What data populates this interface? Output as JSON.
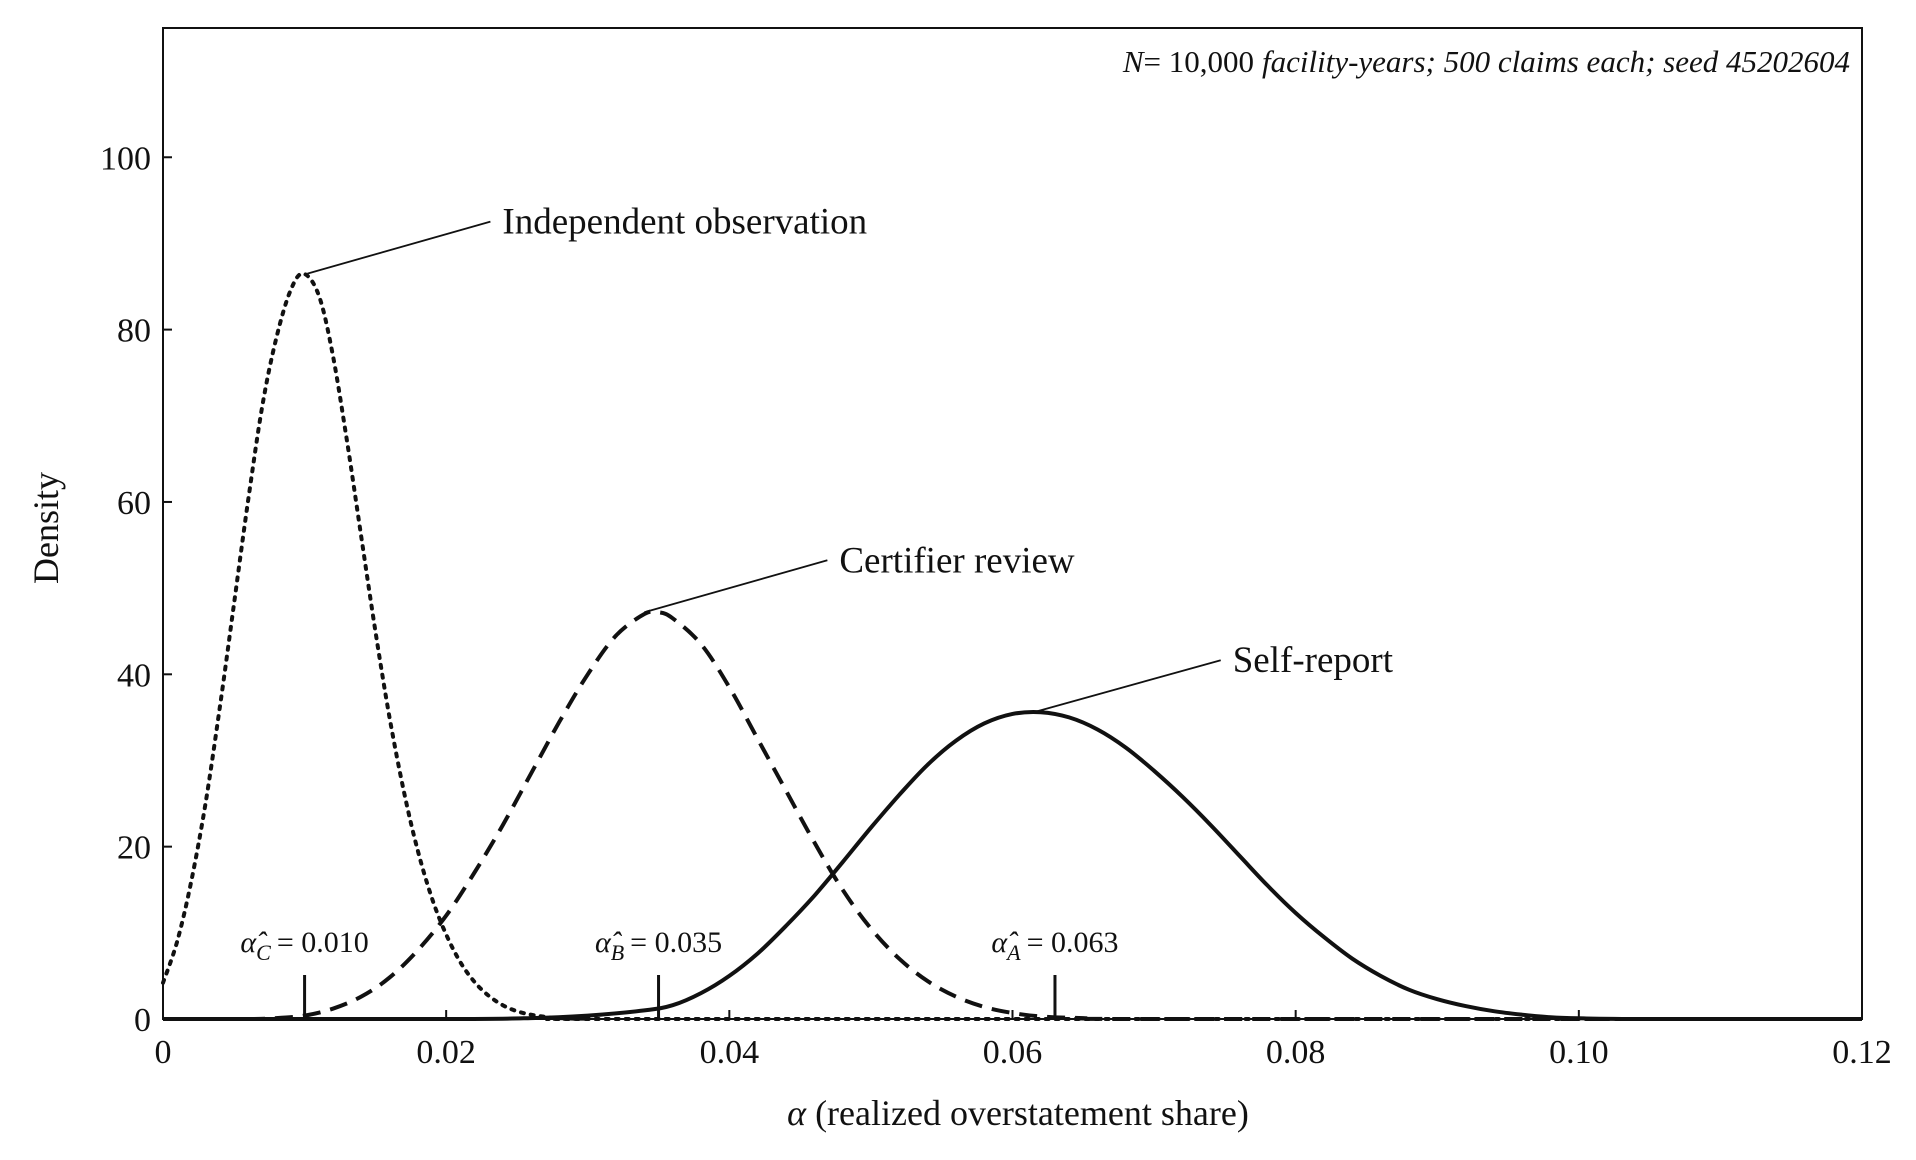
{
  "chart_data": {
    "type": "line",
    "title": "",
    "xlabel": "α (realized overstatement share)",
    "ylabel": "Density",
    "xlim": [
      0,
      0.12
    ],
    "ylim": [
      0,
      115
    ],
    "grid": false,
    "legend": "none",
    "x_ticks": [
      {
        "value": 0,
        "label": "0"
      },
      {
        "value": 0.02,
        "label": "0.02"
      },
      {
        "value": 0.04,
        "label": "0.04"
      },
      {
        "value": 0.06,
        "label": "0.06"
      },
      {
        "value": 0.08,
        "label": "0.08"
      },
      {
        "value": 0.1,
        "label": "0.10"
      },
      {
        "value": 0.12,
        "label": "0.12"
      }
    ],
    "y_ticks": [
      {
        "value": 0,
        "label": "0"
      },
      {
        "value": 20,
        "label": "20"
      },
      {
        "value": 40,
        "label": "40"
      },
      {
        "value": 60,
        "label": "60"
      },
      {
        "value": 80,
        "label": "80"
      },
      {
        "value": 100,
        "label": "100"
      }
    ],
    "note": {
      "n_label": "N",
      "n_value": "= 10,000",
      "rest": "facility-years; 500 claims each; seed 45202604"
    },
    "series": [
      {
        "name": "Independent observation",
        "style": "dotted",
        "color": "#111111",
        "points": [
          [
            0,
            4.2
          ],
          [
            0.001,
            9
          ],
          [
            0.002,
            16
          ],
          [
            0.003,
            25
          ],
          [
            0.004,
            36
          ],
          [
            0.005,
            48
          ],
          [
            0.006,
            60
          ],
          [
            0.007,
            71
          ],
          [
            0.008,
            79
          ],
          [
            0.009,
            84.5
          ],
          [
            0.0099,
            86.5
          ],
          [
            0.011,
            84
          ],
          [
            0.012,
            77
          ],
          [
            0.013,
            67
          ],
          [
            0.014,
            56
          ],
          [
            0.015,
            45
          ],
          [
            0.016,
            35
          ],
          [
            0.017,
            26.5
          ],
          [
            0.018,
            19.5
          ],
          [
            0.019,
            14
          ],
          [
            0.02,
            9.8
          ],
          [
            0.021,
            6.6
          ],
          [
            0.022,
            4.3
          ],
          [
            0.023,
            2.7
          ],
          [
            0.024,
            1.6
          ],
          [
            0.025,
            0.9
          ],
          [
            0.026,
            0.5
          ],
          [
            0.027,
            0.25
          ],
          [
            0.028,
            0.1
          ],
          [
            0.03,
            0.03
          ],
          [
            0.035,
            0
          ],
          [
            0.12,
            0
          ]
        ]
      },
      {
        "name": "Certifier review",
        "style": "dashed",
        "color": "#111111",
        "points": [
          [
            0,
            0
          ],
          [
            0.006,
            0
          ],
          [
            0.008,
            0.1
          ],
          [
            0.01,
            0.4
          ],
          [
            0.012,
            1.2
          ],
          [
            0.014,
            2.6
          ],
          [
            0.016,
            4.8
          ],
          [
            0.018,
            8
          ],
          [
            0.02,
            12
          ],
          [
            0.022,
            17
          ],
          [
            0.024,
            22.5
          ],
          [
            0.026,
            28.5
          ],
          [
            0.028,
            34.5
          ],
          [
            0.03,
            40
          ],
          [
            0.032,
            44.5
          ],
          [
            0.034,
            47
          ],
          [
            0.035,
            47.2
          ],
          [
            0.036,
            46.5
          ],
          [
            0.038,
            43.5
          ],
          [
            0.04,
            38.5
          ],
          [
            0.042,
            32.5
          ],
          [
            0.044,
            26.5
          ],
          [
            0.046,
            20.5
          ],
          [
            0.048,
            15
          ],
          [
            0.05,
            10.5
          ],
          [
            0.052,
            7
          ],
          [
            0.054,
            4.4
          ],
          [
            0.056,
            2.6
          ],
          [
            0.058,
            1.4
          ],
          [
            0.06,
            0.7
          ],
          [
            0.062,
            0.3
          ],
          [
            0.065,
            0.1
          ],
          [
            0.07,
            0
          ],
          [
            0.12,
            0
          ]
        ]
      },
      {
        "name": "Self-report",
        "style": "solid",
        "color": "#111111",
        "points": [
          [
            0,
            0
          ],
          [
            0.02,
            0
          ],
          [
            0.026,
            0.1
          ],
          [
            0.03,
            0.4
          ],
          [
            0.034,
            1
          ],
          [
            0.036,
            1.6
          ],
          [
            0.038,
            3
          ],
          [
            0.04,
            5
          ],
          [
            0.042,
            7.6
          ],
          [
            0.044,
            10.8
          ],
          [
            0.046,
            14.3
          ],
          [
            0.048,
            18.2
          ],
          [
            0.05,
            22.2
          ],
          [
            0.052,
            26
          ],
          [
            0.054,
            29.5
          ],
          [
            0.056,
            32.3
          ],
          [
            0.058,
            34.3
          ],
          [
            0.06,
            35.4
          ],
          [
            0.062,
            35.6
          ],
          [
            0.064,
            35
          ],
          [
            0.066,
            33.6
          ],
          [
            0.068,
            31.5
          ],
          [
            0.07,
            28.8
          ],
          [
            0.072,
            25.8
          ],
          [
            0.074,
            22.5
          ],
          [
            0.076,
            19
          ],
          [
            0.078,
            15.5
          ],
          [
            0.08,
            12.3
          ],
          [
            0.082,
            9.5
          ],
          [
            0.084,
            7
          ],
          [
            0.086,
            5
          ],
          [
            0.088,
            3.4
          ],
          [
            0.09,
            2.3
          ],
          [
            0.092,
            1.5
          ],
          [
            0.094,
            0.9
          ],
          [
            0.096,
            0.5
          ],
          [
            0.098,
            0.2
          ],
          [
            0.1,
            0.08
          ],
          [
            0.105,
            0
          ],
          [
            0.12,
            0
          ]
        ]
      }
    ],
    "annotations": [
      {
        "text": "Independent observation",
        "peak_x": 0.0102,
        "peak_y": 86.5
      },
      {
        "text": "Certifier review",
        "peak_x": 0.034,
        "peak_y": 47.2
      },
      {
        "text": "Self-report",
        "peak_x": 0.0615,
        "peak_y": 35.6
      }
    ],
    "estimates": [
      {
        "symbol": "α̂",
        "subscript": "C",
        "value_label": "= 0.010",
        "x": 0.01
      },
      {
        "symbol": "α̂",
        "subscript": "B",
        "value_label": "= 0.035",
        "x": 0.035
      },
      {
        "symbol": "α̂",
        "subscript": "A",
        "value_label": "= 0.063",
        "x": 0.063
      }
    ]
  }
}
